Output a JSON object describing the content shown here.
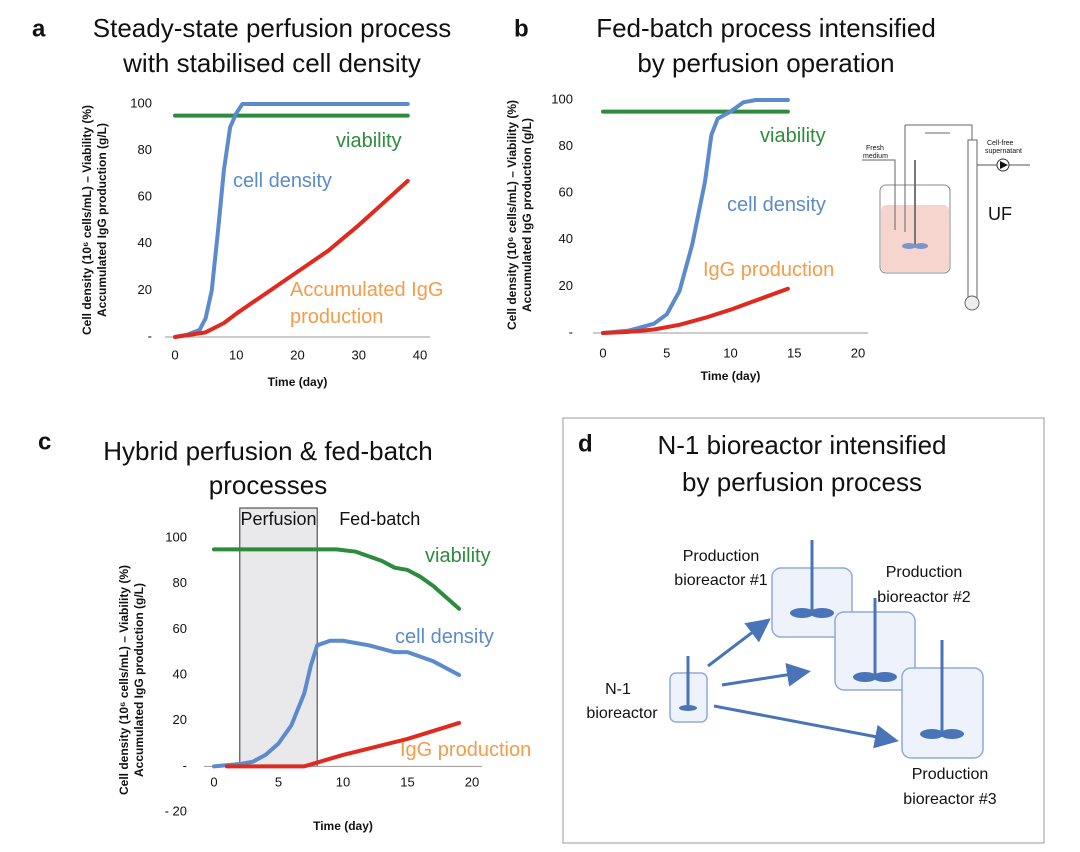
{
  "chart_data": [
    {
      "panel": "a",
      "type": "line",
      "title": [
        "Steady-state perfusion process",
        "with stabilised cell density"
      ],
      "ylabel": [
        "Cell density (10⁶ cells/mL) – Viability (%)",
        "Accumulated IgG production (g/L)"
      ],
      "xlabel": "Time (day)",
      "xlim": [
        0,
        40
      ],
      "xticks": [
        0,
        10,
        20,
        30,
        40
      ],
      "ylim": [
        0,
        100
      ],
      "yticks": [
        {
          "value": 0,
          "label": "-"
        },
        20,
        40,
        60,
        80,
        100
      ],
      "series": [
        {
          "name": "viability",
          "color": "#2e8b3e",
          "label_color": "#2e8b3e",
          "x": [
            0,
            38
          ],
          "values": [
            95,
            95
          ]
        },
        {
          "name": "cell density",
          "color": "#5b8bcc",
          "label_color": "#5b8bcc",
          "x": [
            0,
            2,
            4,
            5,
            6,
            7,
            8,
            9,
            10,
            11,
            38
          ],
          "values": [
            0,
            1,
            3,
            8,
            20,
            45,
            72,
            90,
            96,
            100,
            100
          ]
        },
        {
          "name": "Accumulated IgG production",
          "color": "#e02a1f",
          "label_color": "#f39c4a",
          "x": [
            0,
            5,
            8,
            10,
            15,
            20,
            25,
            30,
            38
          ],
          "values": [
            0,
            2,
            6,
            10,
            19,
            28,
            37,
            48,
            67
          ]
        }
      ]
    },
    {
      "panel": "b",
      "type": "line",
      "title": [
        "Fed-batch process intensified",
        "by perfusion operation"
      ],
      "ylabel": [
        "Cell density (10⁶ cells/mL) – Viability (%)",
        "Accumulated IgG production (g/L)"
      ],
      "xlabel": "Time (day)",
      "xlim": [
        0,
        20
      ],
      "xticks": [
        0,
        5,
        10,
        15,
        20
      ],
      "ylim": [
        0,
        100
      ],
      "yticks": [
        {
          "value": 0,
          "label": "-"
        },
        20,
        40,
        60,
        80,
        100
      ],
      "series": [
        {
          "name": "viability",
          "color": "#2e8b3e",
          "label_color": "#2e8b3e",
          "x": [
            0,
            14.5
          ],
          "values": [
            95,
            95
          ]
        },
        {
          "name": "cell density",
          "color": "#5b8bcc",
          "label_color": "#5b8bcc",
          "x": [
            0,
            2,
            4,
            5,
            6,
            7,
            8,
            8.5,
            9,
            10,
            11,
            12,
            14.5
          ],
          "values": [
            0,
            1,
            4,
            8,
            18,
            38,
            65,
            85,
            92,
            95,
            99,
            100,
            100
          ]
        },
        {
          "name": "IgG production",
          "color": "#e02a1f",
          "label_color": "#f39c4a",
          "x": [
            0,
            2,
            4,
            6,
            8,
            10,
            12,
            14.5
          ],
          "values": [
            0,
            0.5,
            1.5,
            3.5,
            6.5,
            10,
            14,
            19
          ]
        }
      ]
    },
    {
      "panel": "c",
      "type": "line",
      "title": [
        "Hybrid perfusion & fed-batch",
        "processes"
      ],
      "ylabel": [
        "Cell density (10⁶ cells/mL) – Viability (%)",
        "Accumulated IgG production (g/L)"
      ],
      "xlabel": "Time (day)",
      "xlim": [
        0,
        20
      ],
      "xticks": [
        0,
        5,
        10,
        15,
        20
      ],
      "ylim": [
        -20,
        100
      ],
      "yticks": [
        {
          "value": -20,
          "label": "- 20"
        },
        {
          "value": 0,
          "label": "-"
        },
        20,
        40,
        60,
        80,
        100
      ],
      "phases": [
        {
          "label": "Perfusion",
          "xrange": [
            2,
            8
          ]
        },
        {
          "label": "Fed-batch"
        }
      ],
      "series": [
        {
          "name": "viability",
          "color": "#2e8b3e",
          "label_color": "#2e8b3e",
          "x": [
            0,
            9.5,
            11,
            13,
            14,
            15,
            16,
            17,
            18,
            19
          ],
          "values": [
            95,
            95,
            94,
            90,
            87,
            86,
            83,
            79,
            74,
            69
          ]
        },
        {
          "name": "cell density",
          "color": "#5b8bcc",
          "label_color": "#5b8bcc",
          "x": [
            0,
            2,
            3,
            4,
            5,
            6,
            7,
            7.5,
            8,
            9,
            10,
            12,
            14,
            15,
            17,
            19
          ],
          "values": [
            0,
            1,
            2,
            5,
            10,
            18,
            32,
            44,
            53,
            55,
            55,
            53,
            50,
            50,
            46,
            40
          ]
        },
        {
          "name": "IgG production",
          "color": "#e02a1f",
          "label_color": "#f39c4a",
          "x": [
            1,
            7,
            10,
            15,
            19
          ],
          "values": [
            0,
            0,
            5,
            12,
            19
          ]
        }
      ]
    }
  ],
  "schematic": {
    "fresh_medium": [
      "Fresh",
      "medium"
    ],
    "supernatant": [
      "Cell-free",
      "supernatant"
    ],
    "filter": "UF"
  },
  "diagram": {
    "panel": "d",
    "title": [
      "N-1 bioreactor intensified",
      "by perfusion process"
    ],
    "nodes": [
      {
        "label": [
          "Production",
          "bioreactor #1"
        ]
      },
      {
        "label": [
          "Production",
          "bioreactor #2"
        ]
      },
      {
        "label": [
          "Production",
          "bioreactor #3"
        ]
      },
      {
        "label": [
          "N-1",
          "bioreactor"
        ]
      }
    ]
  }
}
